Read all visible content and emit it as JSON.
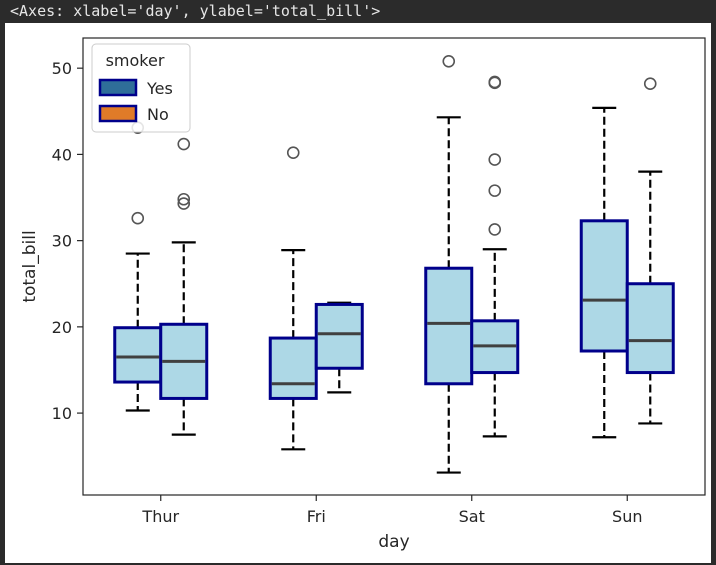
{
  "output_repr": "<Axes: xlabel='day', ylabel='total_bill'>",
  "colors": {
    "box_fill": "#add8e6",
    "box_edge": "#00008b",
    "median": "#404040",
    "whisker": "#000000",
    "legend_yes": "#2f6e99",
    "legend_no": "#e07b28",
    "legend_edge": "#00008b",
    "frame": "#262626"
  },
  "chart_data": {
    "type": "boxplot",
    "xlabel": "day",
    "ylabel": "total_bill",
    "ylim": [
      0.5,
      53.5
    ],
    "yticks": [
      10,
      20,
      30,
      40,
      50
    ],
    "categories": [
      "Thur",
      "Fri",
      "Sat",
      "Sun"
    ],
    "legend": {
      "title": "smoker",
      "position": "top-left",
      "entries": [
        "Yes",
        "No"
      ]
    },
    "series": [
      {
        "name": "Yes",
        "boxes": [
          {
            "whislo": 10.3,
            "q1": 13.6,
            "med": 16.5,
            "q3": 19.9,
            "whishi": 28.5,
            "fliers": [
              32.6,
              43.1
            ]
          },
          {
            "whislo": 5.8,
            "q1": 11.7,
            "med": 13.4,
            "q3": 18.7,
            "whishi": 28.9,
            "fliers": [
              40.2
            ]
          },
          {
            "whislo": 3.1,
            "q1": 13.4,
            "med": 20.4,
            "q3": 26.8,
            "whishi": 44.3,
            "fliers": [
              50.8
            ]
          },
          {
            "whislo": 7.2,
            "q1": 17.2,
            "med": 23.1,
            "q3": 32.3,
            "whishi": 45.4,
            "fliers": []
          }
        ]
      },
      {
        "name": "No",
        "boxes": [
          {
            "whislo": 7.5,
            "q1": 11.7,
            "med": 16.0,
            "q3": 20.3,
            "whishi": 29.8,
            "fliers": [
              34.3,
              34.8,
              41.2
            ]
          },
          {
            "whislo": 12.4,
            "q1": 15.2,
            "med": 19.2,
            "q3": 22.6,
            "whishi": 22.8,
            "fliers": []
          },
          {
            "whislo": 7.3,
            "q1": 14.7,
            "med": 17.8,
            "q3": 20.7,
            "whishi": 29.0,
            "fliers": [
              31.3,
              35.8,
              39.4,
              48.3,
              48.4
            ]
          },
          {
            "whislo": 8.8,
            "q1": 14.7,
            "med": 18.4,
            "q3": 25.0,
            "whishi": 38.0,
            "fliers": [
              48.2
            ]
          }
        ]
      }
    ]
  }
}
